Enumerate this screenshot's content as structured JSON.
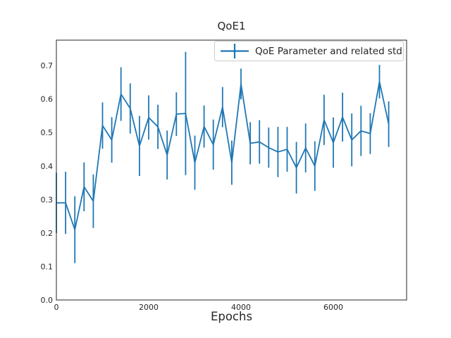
{
  "chart_data": {
    "type": "line",
    "title": "QoE1",
    "xlabel": "Epochs",
    "ylabel": "",
    "grid": false,
    "legend": {
      "label": "QoE Parameter and related std",
      "position": "upper right",
      "marker": "errorbar-plus"
    },
    "series_color": "#1f77b4",
    "axis_color": "#262626",
    "xlim": [
      0,
      7588
    ],
    "ylim": [
      0,
      0.776
    ],
    "x_ticks": [
      0,
      2000,
      4000,
      6000
    ],
    "y_ticks": [
      0.0,
      0.1,
      0.2,
      0.3,
      0.4,
      0.5,
      0.6,
      0.7
    ],
    "series": [
      {
        "name": "QoE Parameter and related std",
        "x": [
          0,
          200,
          400,
          600,
          800,
          1000,
          1200,
          1400,
          1600,
          1800,
          2000,
          2200,
          2400,
          2600,
          2800,
          3000,
          3200,
          3400,
          3600,
          3800,
          4000,
          4200,
          4400,
          4600,
          4800,
          5000,
          5200,
          5400,
          5600,
          5800,
          6000,
          6200,
          6400,
          6600,
          6800,
          7000,
          7200
        ],
        "y": [
          0.29,
          0.29,
          0.21,
          0.338,
          0.295,
          0.521,
          0.478,
          0.615,
          0.572,
          0.46,
          0.545,
          0.517,
          0.433,
          0.555,
          0.557,
          0.41,
          0.518,
          0.464,
          0.576,
          0.41,
          0.645,
          0.468,
          0.472,
          0.455,
          0.442,
          0.45,
          0.395,
          0.454,
          0.4,
          0.538,
          0.47,
          0.546,
          0.478,
          0.505,
          0.497,
          0.652,
          0.525
        ],
        "std": [
          0.09,
          0.093,
          0.1,
          0.073,
          0.08,
          0.069,
          0.068,
          0.08,
          0.075,
          0.09,
          0.066,
          0.066,
          0.073,
          0.065,
          0.184,
          0.081,
          0.063,
          0.075,
          0.06,
          0.066,
          0.046,
          0.063,
          0.065,
          0.06,
          0.075,
          0.067,
          0.077,
          0.073,
          0.074,
          0.075,
          0.075,
          0.073,
          0.079,
          0.075,
          0.061,
          0.05,
          0.068
        ]
      }
    ]
  }
}
